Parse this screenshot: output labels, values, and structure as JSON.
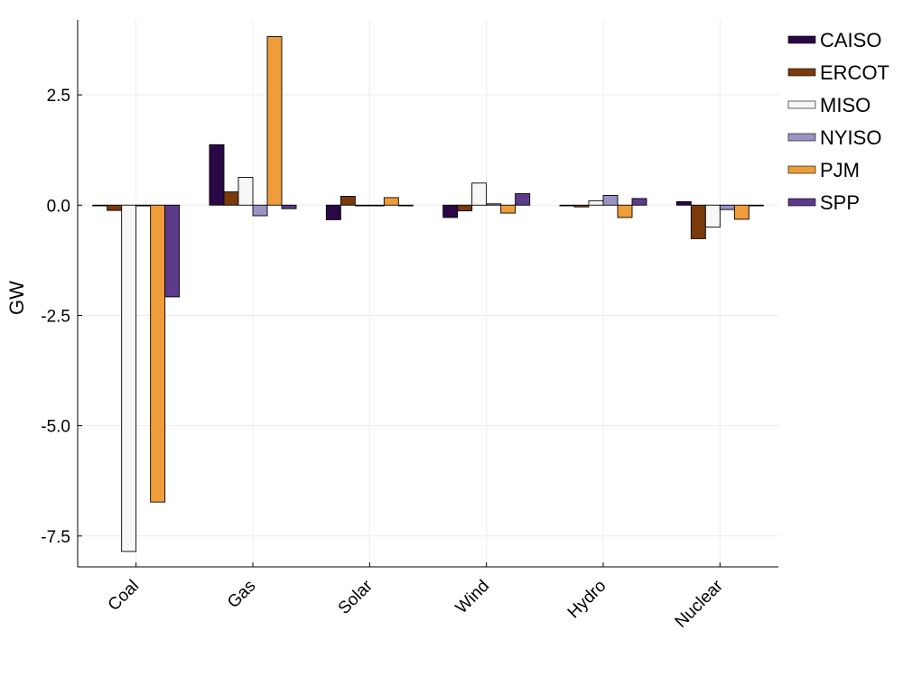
{
  "chart_data": {
    "type": "bar",
    "title": "",
    "xlabel": "",
    "ylabel": "GW",
    "categories": [
      "Coal",
      "Gas",
      "Solar",
      "Wind",
      "Hydro",
      "Nuclear"
    ],
    "yticks": [
      2.5,
      0.0,
      -2.5,
      -5.0,
      -7.5
    ],
    "ytick_labels": [
      "2.5",
      "0.0",
      "-2.5",
      "-5.0",
      "-7.5"
    ],
    "ylim": [
      -8.2,
      4.2
    ],
    "grid": true,
    "legend_position": "top-right",
    "series": [
      {
        "name": "CAISO",
        "color": "#2a0845",
        "values": [
          0.0,
          1.37,
          -0.33,
          -0.28,
          0.0,
          0.08
        ]
      },
      {
        "name": "ERCOT",
        "color": "#7a3a0a",
        "values": [
          -0.12,
          0.3,
          0.2,
          -0.13,
          -0.04,
          -0.76
        ]
      },
      {
        "name": "MISO",
        "color": "#f7f7f7",
        "values": [
          -7.85,
          0.63,
          0.0,
          0.5,
          0.1,
          -0.5
        ]
      },
      {
        "name": "NYISO",
        "color": "#9a93c4",
        "values": [
          0.0,
          -0.24,
          0.0,
          0.03,
          0.22,
          -0.1
        ]
      },
      {
        "name": "PJM",
        "color": "#ee9d3a",
        "values": [
          -6.73,
          3.82,
          0.17,
          -0.18,
          -0.28,
          -0.32
        ]
      },
      {
        "name": "SPP",
        "color": "#5e3a8c",
        "values": [
          -2.08,
          -0.08,
          0.0,
          0.26,
          0.15,
          0.0
        ]
      }
    ]
  }
}
